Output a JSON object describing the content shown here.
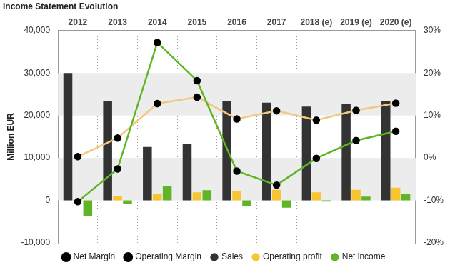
{
  "chart_data": {
    "type": "bar",
    "title": "Income Statement Evolution",
    "y_label": "Million EUR",
    "categories": [
      "2012",
      "2013",
      "2014",
      "2015",
      "2016",
      "2017",
      "2018 (e)",
      "2019 (e)",
      "2020 (e)"
    ],
    "series": [
      {
        "name": "Sales",
        "color": "#333333",
        "values": [
          30000,
          23300,
          12600,
          13300,
          23500,
          23000,
          22100,
          22700,
          23300
        ]
      },
      {
        "name": "Operating profit",
        "color": "#f7c531",
        "values": [
          100,
          1100,
          1600,
          1900,
          2100,
          2500,
          1900,
          2500,
          3000
        ]
      },
      {
        "name": "Net income",
        "color": "#5fb526",
        "values": [
          -3700,
          -900,
          3300,
          2400,
          -1300,
          -1700,
          -300,
          900,
          1500
        ]
      },
      {
        "name": "Net Margin",
        "color": "#5fb526",
        "type": "line",
        "axis": "y2",
        "marker": "circle",
        "values": [
          -10.3,
          -2.6,
          27.2,
          18.2,
          -3.1,
          -6.4,
          -0.1,
          4.1,
          6.3
        ]
      },
      {
        "name": "Operating Margin",
        "color": "#f3c77e",
        "type": "line",
        "axis": "y2",
        "marker": "circle",
        "values": [
          0.3,
          4.7,
          12.8,
          14.3,
          9.2,
          11.1,
          8.9,
          11.2,
          12.9
        ]
      }
    ],
    "ylim": [
      -10000,
      40000
    ],
    "yticks": [
      {
        "value": -10000,
        "label": "-10,000"
      },
      0,
      {
        "value": 10000,
        "label": "10,000"
      },
      {
        "value": 20000,
        "label": "20,000"
      },
      {
        "value": 30000,
        "label": "30,000"
      },
      {
        "value": 40000,
        "label": "40,000"
      }
    ],
    "y2lim": [
      -20,
      30
    ],
    "y2ticks": [
      {
        "value": -20,
        "label": "-20%"
      },
      {
        "value": -10,
        "label": "-10%"
      },
      {
        "value": 0,
        "label": "0%"
      },
      {
        "value": 10,
        "label": "10%"
      },
      {
        "value": 20,
        "label": "20%"
      },
      {
        "value": 30,
        "label": "30%"
      }
    ],
    "grid": true,
    "legend": "bottom"
  }
}
